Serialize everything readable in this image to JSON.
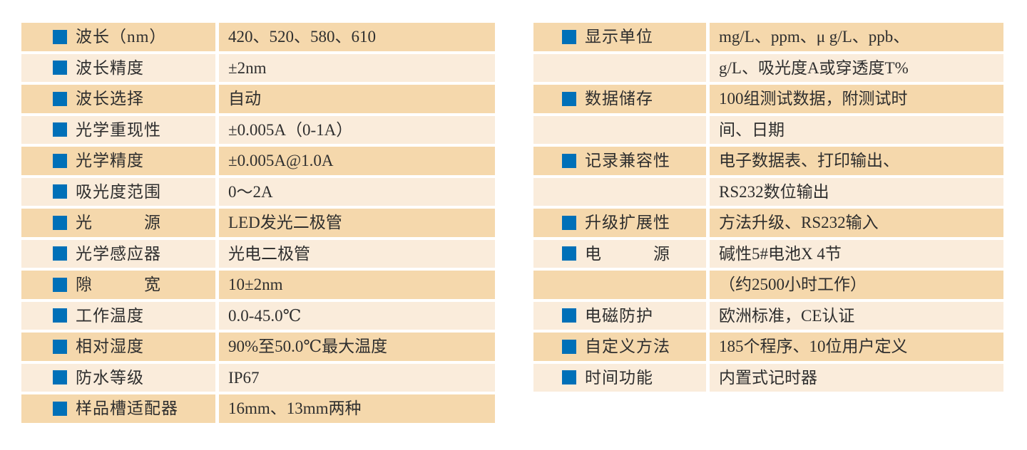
{
  "colors": {
    "page_bg": "#ffffff",
    "row_dark": "#f5d8ac",
    "row_light": "#faecdb",
    "bullet_blue": "#0070b8",
    "text": "#2e2e2e"
  },
  "left_table": {
    "rows": [
      {
        "label": "波长（nm）",
        "value": "420、520、580、610"
      },
      {
        "label": "波长精度",
        "value": "±2nm"
      },
      {
        "label": "波长选择",
        "value": "自动"
      },
      {
        "label": "光学重现性",
        "value": "±0.005A（0-1A）"
      },
      {
        "label": "光学精度",
        "value": "±0.005A@1.0A"
      },
      {
        "label": "吸光度范围",
        "value": "0～2A"
      },
      {
        "label": "光　　　源",
        "value": "LED发光二极管"
      },
      {
        "label": "光学感应器",
        "value": "光电二极管"
      },
      {
        "label": "隙　　　宽",
        "value": "10±2nm"
      },
      {
        "label": "工作温度",
        "value": "0.0-45.0℃"
      },
      {
        "label": "相对湿度",
        "value": "90%至50.0℃最大温度"
      },
      {
        "label": "防水等级",
        "value": "IP67"
      },
      {
        "label": "样品槽适配器",
        "value": "16mm、13mm两种"
      }
    ]
  },
  "right_table": {
    "rows": [
      {
        "label": "显示单位",
        "value": "mg/L、ppm、μ g/L、ppb、"
      },
      {
        "label": "",
        "value": "g/L、吸光度A或穿透度T%"
      },
      {
        "label": "数据储存",
        "value": "100组测试数据，附测试时"
      },
      {
        "label": "",
        "value": "间、日期"
      },
      {
        "label": "记录兼容性",
        "value": "电子数据表、打印输出、"
      },
      {
        "label": "",
        "value": "RS232数位输出"
      },
      {
        "label": "升级扩展性",
        "value": "方法升级、RS232输入"
      },
      {
        "label": "电　　　源",
        "value": "碱性5#电池X 4节"
      },
      {
        "label": "",
        "value": "（约2500小时工作）"
      },
      {
        "label": "电磁防护",
        "value": "欧洲标准，CE认证"
      },
      {
        "label": "自定义方法",
        "value": "185个程序、10位用户定义"
      },
      {
        "label": "时间功能",
        "value": "内置式记时器"
      }
    ]
  }
}
